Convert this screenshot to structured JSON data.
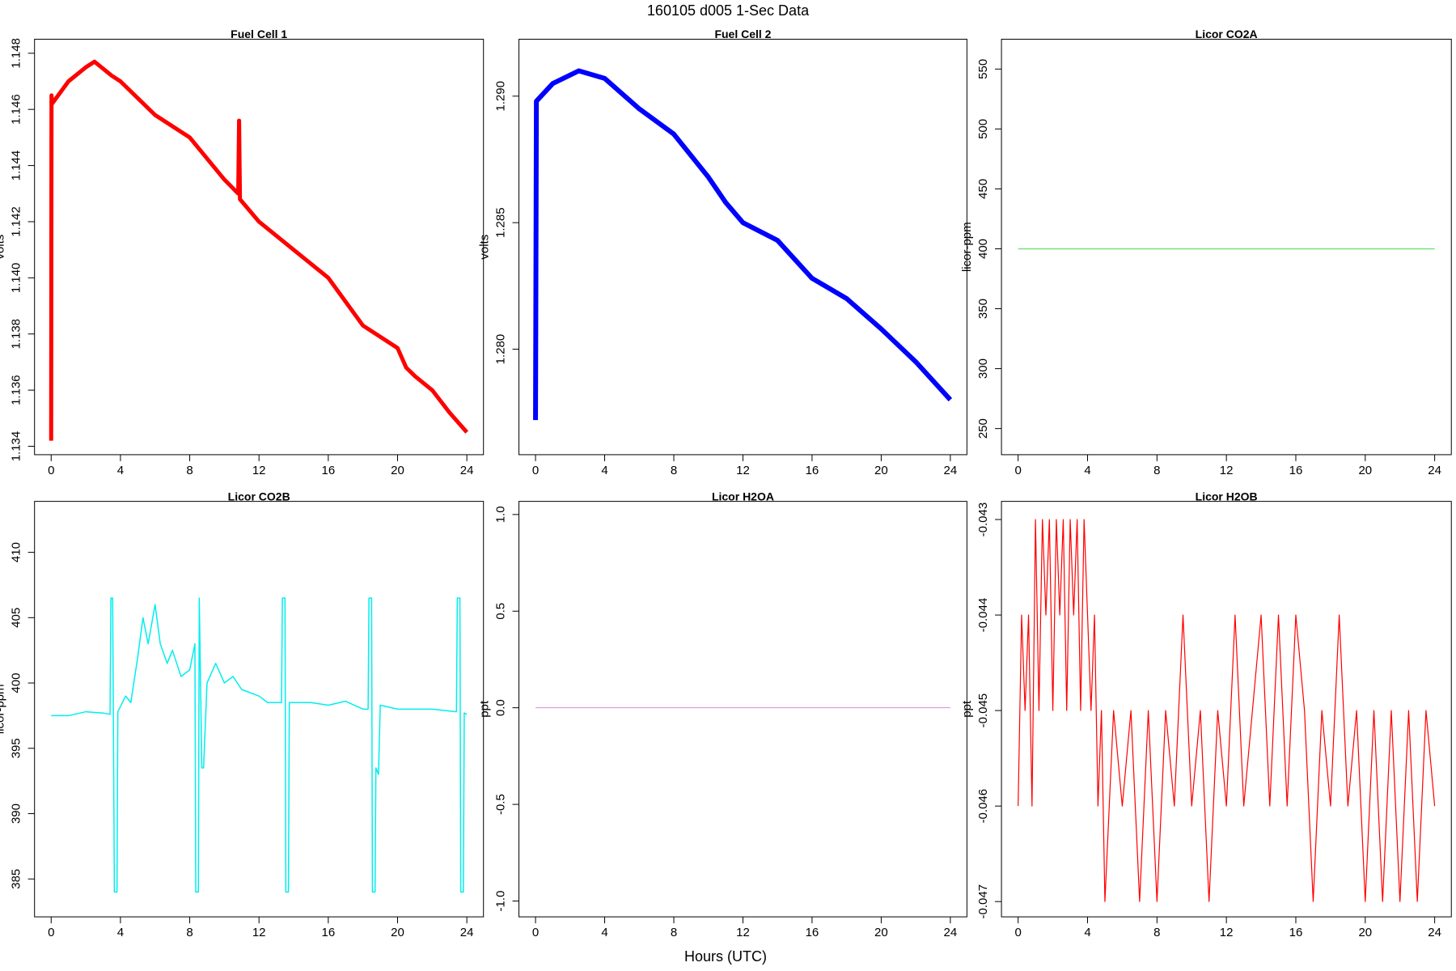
{
  "title": "160105   d005   1-Sec Data",
  "xlabel": "Hours (UTC)",
  "chart_data": [
    {
      "type": "line",
      "title": "Fuel Cell 1",
      "ylabel": "volts",
      "color": "#ff0000",
      "x": [
        0,
        0.02,
        0.05,
        1,
        2,
        2.5,
        3.5,
        4,
        6,
        8,
        10,
        10.8,
        10.85,
        10.9,
        12,
        14,
        16,
        18,
        20,
        20.5,
        21,
        22,
        23,
        24
      ],
      "values": [
        1.1342,
        1.1465,
        1.1462,
        1.147,
        1.1475,
        1.1477,
        1.1472,
        1.147,
        1.1458,
        1.145,
        1.1435,
        1.143,
        1.1456,
        1.1428,
        1.142,
        1.141,
        1.14,
        1.1383,
        1.1375,
        1.1368,
        1.1365,
        1.136,
        1.1352,
        1.1345
      ],
      "xlim": [
        -0.96,
        24.96
      ],
      "xticks": [
        0,
        4,
        8,
        12,
        16,
        20,
        24
      ],
      "ylim": [
        1.1337,
        1.1485
      ],
      "yticks": [
        1.134,
        1.136,
        1.138,
        {
          "value": 1.14,
          "label": "1.140"
        },
        1.142,
        1.144,
        1.146,
        1.148
      ]
    },
    {
      "type": "line",
      "title": "Fuel Cell 2",
      "ylabel": "volts",
      "color": "#0000ff",
      "x": [
        0,
        0.05,
        1,
        2.5,
        4,
        6,
        8,
        10,
        11,
        12,
        14,
        16,
        18,
        20,
        22,
        24
      ],
      "values": [
        1.2772,
        1.2898,
        1.2905,
        1.291,
        1.2907,
        1.2895,
        1.2885,
        1.2868,
        1.2858,
        1.285,
        1.2843,
        1.2828,
        1.282,
        1.2808,
        1.2795,
        1.278
      ],
      "xlim": [
        -0.96,
        24.96
      ],
      "xticks": [
        0,
        4,
        8,
        12,
        16,
        20,
        24
      ],
      "ylim": [
        1.27583,
        1.29225
      ],
      "yticks": [
        {
          "value": 1.28,
          "label": "1.280"
        },
        1.285,
        {
          "value": 1.29,
          "label": "1.290"
        }
      ]
    },
    {
      "type": "line",
      "title": "Licor CO2A",
      "ylabel": "licor-ppm",
      "color": "#77e077",
      "x": [
        0,
        24
      ],
      "values": [
        400,
        400
      ],
      "xlim": [
        -0.96,
        24.96
      ],
      "xticks": [
        0,
        4,
        8,
        12,
        16,
        20,
        24
      ],
      "ylim": [
        228.2,
        574.9
      ],
      "yticks": [
        250,
        300,
        350,
        400,
        450,
        500,
        550
      ]
    },
    {
      "type": "line",
      "title": "Licor CO2B",
      "ylabel": "licor-ppm",
      "color": "#00eeee",
      "x": [
        0,
        1,
        2,
        3,
        3.4,
        3.45,
        3.55,
        3.6,
        3.65,
        3.8,
        3.85,
        4.3,
        4.6,
        5,
        5.3,
        5.6,
        6,
        6.3,
        6.7,
        7,
        7.5,
        8,
        8.3,
        8.35,
        8.5,
        8.55,
        8.7,
        8.8,
        9,
        9.5,
        10,
        10.5,
        11,
        12,
        12.5,
        13.3,
        13.35,
        13.5,
        13.55,
        13.7,
        13.75,
        15,
        16,
        17,
        18,
        18.3,
        18.35,
        18.5,
        18.55,
        18.7,
        18.75,
        18.9,
        19,
        20,
        22,
        23.4,
        23.45,
        23.6,
        23.65,
        23.8,
        23.85,
        24
      ],
      "values": [
        397.5,
        397.5,
        397.8,
        397.7,
        397.6,
        406.5,
        406.5,
        395.5,
        384,
        384,
        397.8,
        399,
        398.5,
        402,
        405,
        403,
        406,
        403,
        401.5,
        402.5,
        400.5,
        401,
        403,
        384,
        384,
        406.5,
        393.5,
        393.5,
        400,
        401.5,
        400,
        400.5,
        399.5,
        399,
        398.5,
        398.5,
        406.5,
        406.5,
        384,
        384,
        398.5,
        398.5,
        398.3,
        398.6,
        398,
        398,
        406.5,
        406.5,
        384,
        384,
        393.5,
        393,
        398.3,
        398,
        398,
        397.8,
        406.5,
        406.5,
        384,
        384,
        397.7,
        397.6
      ],
      "xlim": [
        -0.96,
        24.96
      ],
      "xticks": [
        0,
        4,
        8,
        12,
        16,
        20,
        24
      ],
      "ylim": [
        382.1,
        413.9
      ],
      "yticks": [
        385,
        390,
        395,
        400,
        405,
        410
      ]
    },
    {
      "type": "line",
      "title": "Licor H2OA",
      "ylabel": "ppt",
      "color": "#dd88dd",
      "x": [
        0,
        24
      ],
      "values": [
        0,
        0
      ],
      "xlim": [
        -0.96,
        24.96
      ],
      "xticks": [
        0,
        4,
        8,
        12,
        16,
        20,
        24
      ],
      "ylim": [
        -1.082,
        1.068
      ],
      "yticks": [
        {
          "value": -1,
          "label": "-1.0"
        },
        -0.5,
        {
          "value": 0,
          "label": "0.0"
        },
        0.5,
        {
          "value": 1,
          "label": "1.0"
        }
      ]
    },
    {
      "type": "line",
      "title": "Licor H2OB",
      "ylabel": "ppt",
      "color": "#ff0000",
      "x": [
        0,
        0.2,
        0.4,
        0.6,
        0.8,
        1.0,
        1.2,
        1.4,
        1.6,
        1.8,
        2.0,
        2.2,
        2.4,
        2.6,
        2.8,
        3.0,
        3.2,
        3.4,
        3.6,
        3.8,
        4.0,
        4.2,
        4.4,
        4.6,
        4.8,
        5.0,
        5.5,
        6.0,
        6.5,
        7.0,
        7.5,
        8.0,
        8.5,
        9.0,
        9.5,
        10.0,
        10.5,
        11.0,
        11.5,
        12.0,
        12.5,
        13.0,
        13.5,
        14.0,
        14.5,
        15.0,
        15.5,
        16.0,
        16.5,
        17.0,
        17.5,
        18.0,
        18.5,
        19.0,
        19.5,
        20.0,
        20.5,
        21.0,
        21.5,
        22.0,
        22.5,
        23.0,
        23.5,
        24.0
      ],
      "values": [
        -0.046,
        -0.044,
        -0.045,
        -0.044,
        -0.046,
        -0.043,
        -0.045,
        -0.043,
        -0.044,
        -0.043,
        -0.045,
        -0.043,
        -0.044,
        -0.043,
        -0.045,
        -0.043,
        -0.044,
        -0.043,
        -0.045,
        -0.043,
        -0.044,
        -0.045,
        -0.044,
        -0.046,
        -0.045,
        -0.047,
        -0.045,
        -0.046,
        -0.045,
        -0.047,
        -0.045,
        -0.047,
        -0.045,
        -0.046,
        -0.044,
        -0.046,
        -0.045,
        -0.047,
        -0.045,
        -0.046,
        -0.044,
        -0.046,
        -0.045,
        -0.044,
        -0.046,
        -0.044,
        -0.046,
        -0.044,
        -0.045,
        -0.047,
        -0.045,
        -0.046,
        -0.044,
        -0.046,
        -0.045,
        -0.047,
        -0.045,
        -0.047,
        -0.045,
        -0.047,
        -0.045,
        -0.047,
        -0.045,
        -0.046
      ],
      "xlim": [
        -0.96,
        24.96
      ],
      "xticks": [
        0,
        4,
        8,
        12,
        16,
        20,
        24
      ],
      "ylim": [
        -0.04716,
        -0.04281
      ],
      "yticks": [
        -0.047,
        -0.046,
        -0.045,
        -0.044,
        -0.043
      ]
    }
  ]
}
